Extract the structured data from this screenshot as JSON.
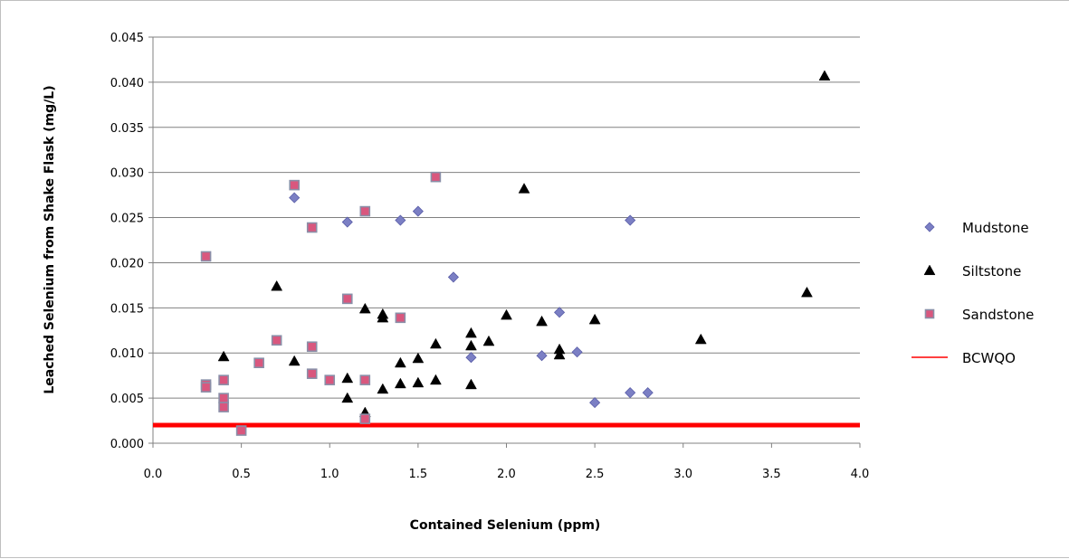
{
  "chart_data": {
    "type": "scatter",
    "title": "",
    "xlabel": "Contained Selenium (ppm)",
    "ylabel": "Leached Selenium from Shake Flask (mg/L)",
    "xlim": [
      0.0,
      4.0
    ],
    "ylim": [
      0.0,
      0.045
    ],
    "x_ticks": [
      "0.0",
      "0.5",
      "1.0",
      "1.5",
      "2.0",
      "2.5",
      "3.0",
      "3.5",
      "4.0"
    ],
    "y_ticks": [
      "0.000",
      "0.005",
      "0.010",
      "0.015",
      "0.020",
      "0.025",
      "0.030",
      "0.035",
      "0.040",
      "0.045"
    ],
    "grid": "horizontal",
    "legend_position": "right",
    "series": [
      {
        "name": "Mudstone",
        "marker": "diamond",
        "color": "#7b7fc4",
        "points": [
          [
            0.8,
            0.0272
          ],
          [
            1.1,
            0.0245
          ],
          [
            1.4,
            0.0247
          ],
          [
            1.5,
            0.0257
          ],
          [
            1.7,
            0.0184
          ],
          [
            1.8,
            0.0095
          ],
          [
            2.2,
            0.0097
          ],
          [
            2.3,
            0.0145
          ],
          [
            2.4,
            0.0101
          ],
          [
            2.5,
            0.0045
          ],
          [
            2.7,
            0.0247
          ],
          [
            2.7,
            0.0056
          ],
          [
            2.8,
            0.0056
          ]
        ]
      },
      {
        "name": "Siltstone",
        "marker": "triangle",
        "color": "#000000",
        "points": [
          [
            0.4,
            0.0096
          ],
          [
            0.7,
            0.0174
          ],
          [
            0.8,
            0.0091
          ],
          [
            1.1,
            0.0072
          ],
          [
            1.1,
            0.005
          ],
          [
            1.2,
            0.0149
          ],
          [
            1.2,
            0.0034
          ],
          [
            1.3,
            0.0143
          ],
          [
            1.3,
            0.0139
          ],
          [
            1.3,
            0.006
          ],
          [
            1.4,
            0.0089
          ],
          [
            1.4,
            0.0066
          ],
          [
            1.5,
            0.0094
          ],
          [
            1.5,
            0.0067
          ],
          [
            1.6,
            0.011
          ],
          [
            1.6,
            0.007
          ],
          [
            1.8,
            0.0122
          ],
          [
            1.8,
            0.0108
          ],
          [
            1.8,
            0.0065
          ],
          [
            1.9,
            0.0113
          ],
          [
            2.0,
            0.0142
          ],
          [
            2.1,
            0.0282
          ],
          [
            2.2,
            0.0135
          ],
          [
            2.3,
            0.0104
          ],
          [
            2.3,
            0.0098
          ],
          [
            2.5,
            0.0137
          ],
          [
            3.1,
            0.0115
          ],
          [
            3.7,
            0.0167
          ],
          [
            3.8,
            0.0407
          ]
        ]
      },
      {
        "name": "Sandstone",
        "marker": "square",
        "color": "#d9577e",
        "points": [
          [
            0.3,
            0.0207
          ],
          [
            0.3,
            0.0065
          ],
          [
            0.3,
            0.0062
          ],
          [
            0.4,
            0.007
          ],
          [
            0.4,
            0.005
          ],
          [
            0.4,
            0.004
          ],
          [
            0.5,
            0.0014
          ],
          [
            0.6,
            0.0089
          ],
          [
            0.7,
            0.0114
          ],
          [
            0.8,
            0.0286
          ],
          [
            0.9,
            0.0239
          ],
          [
            0.9,
            0.0107
          ],
          [
            0.9,
            0.0077
          ],
          [
            1.0,
            0.007
          ],
          [
            1.1,
            0.016
          ],
          [
            1.2,
            0.0257
          ],
          [
            1.2,
            0.007
          ],
          [
            1.2,
            0.0027
          ],
          [
            1.4,
            0.0139
          ],
          [
            1.6,
            0.0295
          ]
        ]
      },
      {
        "name": "BCWQO",
        "marker": "line",
        "color": "#ff0000",
        "value": 0.002
      }
    ]
  }
}
